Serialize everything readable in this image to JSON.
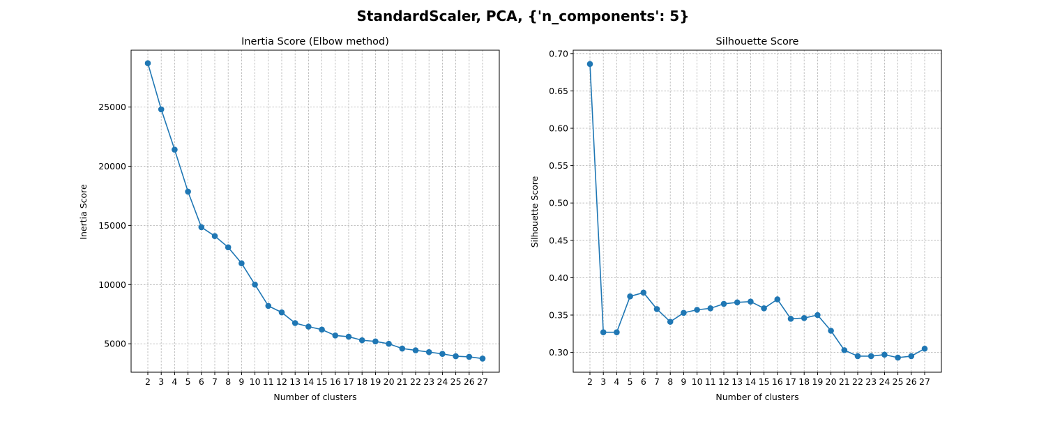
{
  "figure": {
    "suptitle": "StandardScaler, PCA, {'n_components': 5}"
  },
  "colors": {
    "series": "#1f77b4",
    "grid": "#b0b0b0",
    "axis": "#000000"
  },
  "chart_data": [
    {
      "type": "line",
      "title": "Inertia Score (Elbow method)",
      "xlabel": "Number of clusters",
      "ylabel": "Inertia Score",
      "x": [
        2,
        3,
        4,
        5,
        6,
        7,
        8,
        9,
        10,
        11,
        12,
        13,
        14,
        15,
        16,
        17,
        18,
        19,
        20,
        21,
        22,
        23,
        24,
        25,
        26,
        27
      ],
      "xlim": [
        0.75,
        28.25
      ],
      "ylim": [
        2600,
        29800
      ],
      "yticks": [
        5000,
        10000,
        15000,
        20000,
        25000
      ],
      "grid": true,
      "marker": "circle",
      "series": [
        {
          "values": [
            28700,
            24800,
            21400,
            17850,
            14850,
            14100,
            13150,
            11800,
            10000,
            8200,
            7650,
            6750,
            6450,
            6200,
            5700,
            5600,
            5300,
            5200,
            5000,
            4600,
            4450,
            4300,
            4150,
            3950,
            3900,
            3750
          ]
        }
      ]
    },
    {
      "type": "line",
      "title": "Silhouette Score",
      "xlabel": "Number of clusters",
      "ylabel": "Silhouette Score",
      "x": [
        2,
        3,
        4,
        5,
        6,
        7,
        8,
        9,
        10,
        11,
        12,
        13,
        14,
        15,
        16,
        17,
        18,
        19,
        20,
        21,
        22,
        23,
        24,
        25,
        26,
        27
      ],
      "xlim": [
        0.75,
        28.25
      ],
      "ylim": [
        0.2735,
        0.7045
      ],
      "yticks": [
        0.3,
        0.35,
        0.4,
        0.45,
        0.5,
        0.55,
        0.6,
        0.65,
        0.7
      ],
      "ytick_labels": [
        "0.30",
        "0.35",
        "0.40",
        "0.45",
        "0.50",
        "0.55",
        "0.60",
        "0.65",
        "0.70"
      ],
      "grid": true,
      "marker": "circle",
      "series": [
        {
          "values": [
            0.686,
            0.327,
            0.327,
            0.375,
            0.38,
            0.358,
            0.341,
            0.353,
            0.357,
            0.359,
            0.365,
            0.367,
            0.368,
            0.359,
            0.371,
            0.345,
            0.346,
            0.35,
            0.329,
            0.303,
            0.295,
            0.295,
            0.297,
            0.293,
            0.295,
            0.305
          ]
        }
      ]
    }
  ]
}
